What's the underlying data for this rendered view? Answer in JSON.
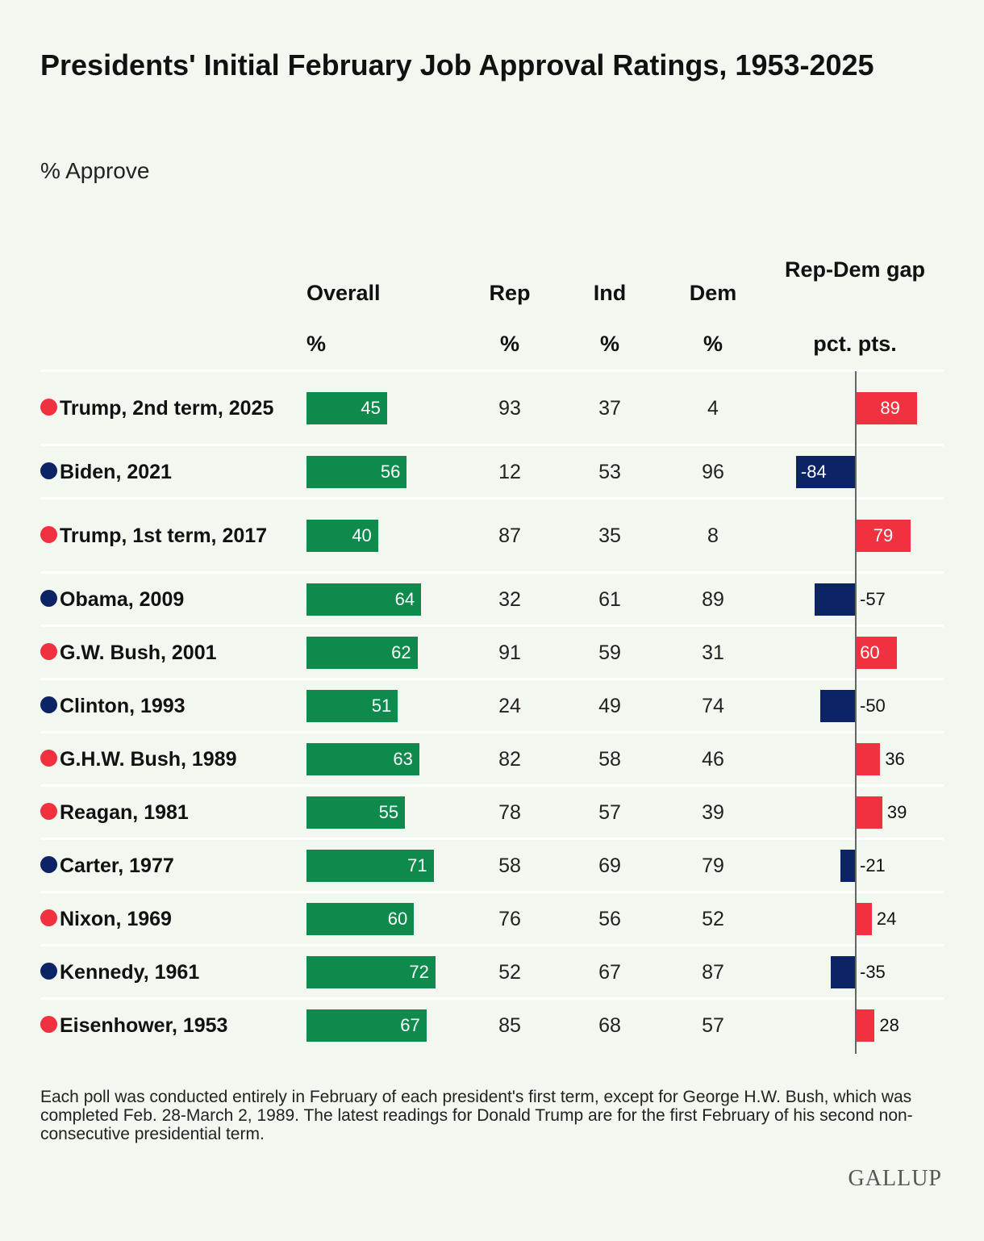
{
  "title": "Presidents' Initial February Job Approval Ratings, 1953-2025",
  "subtitle": "% Approve",
  "columns": {
    "overall": {
      "label": "Overall",
      "unit": "%"
    },
    "rep": {
      "label": "Rep",
      "unit": "%"
    },
    "ind": {
      "label": "Ind",
      "unit": "%"
    },
    "dem": {
      "label": "Dem",
      "unit": "%"
    },
    "gap": {
      "label": "Rep-Dem gap",
      "unit": "pct. pts."
    }
  },
  "colors": {
    "overall_bar": "#0d8a4c",
    "republican": "#f0313f",
    "democrat": "#0c2366",
    "background": "#f2f7f0"
  },
  "chart_data": {
    "type": "table",
    "rows": [
      {
        "president": "Trump, 2nd term, 2025",
        "party": "R",
        "overall": 45,
        "rep": 93,
        "ind": 37,
        "dem": 4,
        "gap": 89
      },
      {
        "president": "Biden, 2021",
        "party": "D",
        "overall": 56,
        "rep": 12,
        "ind": 53,
        "dem": 96,
        "gap": -84
      },
      {
        "president": "Trump, 1st term, 2017",
        "party": "R",
        "overall": 40,
        "rep": 87,
        "ind": 35,
        "dem": 8,
        "gap": 79
      },
      {
        "president": "Obama, 2009",
        "party": "D",
        "overall": 64,
        "rep": 32,
        "ind": 61,
        "dem": 89,
        "gap": -57
      },
      {
        "president": "G.W. Bush, 2001",
        "party": "R",
        "overall": 62,
        "rep": 91,
        "ind": 59,
        "dem": 31,
        "gap": 60
      },
      {
        "president": "Clinton, 1993",
        "party": "D",
        "overall": 51,
        "rep": 24,
        "ind": 49,
        "dem": 74,
        "gap": -50
      },
      {
        "president": "G.H.W. Bush, 1989",
        "party": "R",
        "overall": 63,
        "rep": 82,
        "ind": 58,
        "dem": 46,
        "gap": 36
      },
      {
        "president": "Reagan, 1981",
        "party": "R",
        "overall": 55,
        "rep": 78,
        "ind": 57,
        "dem": 39,
        "gap": 39
      },
      {
        "president": "Carter, 1977",
        "party": "D",
        "overall": 71,
        "rep": 58,
        "ind": 69,
        "dem": 79,
        "gap": -21
      },
      {
        "president": "Nixon, 1969",
        "party": "R",
        "overall": 60,
        "rep": 76,
        "ind": 56,
        "dem": 52,
        "gap": 24
      },
      {
        "president": "Kennedy, 1961",
        "party": "D",
        "overall": 72,
        "rep": 52,
        "ind": 67,
        "dem": 87,
        "gap": -35
      },
      {
        "president": "Eisenhower, 1953",
        "party": "R",
        "overall": 67,
        "rep": 85,
        "ind": 68,
        "dem": 57,
        "gap": 28
      }
    ]
  },
  "footnote": "Each poll was conducted entirely in February of each president's first term, except for George H.W. Bush, which was completed Feb. 28-March 2, 1989. The latest readings for Donald Trump are for the first February of his second non-consecutive presidential term.",
  "logo": "GALLUP"
}
